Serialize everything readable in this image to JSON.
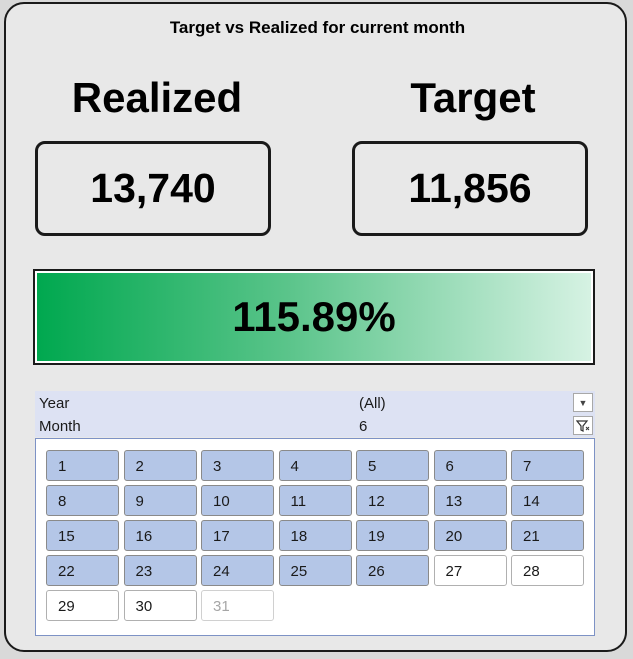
{
  "dashboard": {
    "title": "Target vs Realized for current month",
    "realized_label": "Realized",
    "target_label": "Target",
    "realized_value": "13,740",
    "target_value": "11,856",
    "achievement_text": "115.89%",
    "achievement_fraction": 1.0
  },
  "filters": {
    "year": {
      "label": "Year",
      "value": "(All)",
      "button_icon": "dropdown-arrow-icon"
    },
    "month": {
      "label": "Month",
      "value": "6",
      "button_icon": "filter-active-icon"
    }
  },
  "slicer": {
    "days": [
      {
        "label": "1",
        "state": "selected"
      },
      {
        "label": "2",
        "state": "selected"
      },
      {
        "label": "3",
        "state": "selected"
      },
      {
        "label": "4",
        "state": "selected"
      },
      {
        "label": "5",
        "state": "selected"
      },
      {
        "label": "6",
        "state": "selected"
      },
      {
        "label": "7",
        "state": "selected"
      },
      {
        "label": "8",
        "state": "selected"
      },
      {
        "label": "9",
        "state": "selected"
      },
      {
        "label": "10",
        "state": "selected"
      },
      {
        "label": "11",
        "state": "selected"
      },
      {
        "label": "12",
        "state": "selected"
      },
      {
        "label": "13",
        "state": "selected"
      },
      {
        "label": "14",
        "state": "selected"
      },
      {
        "label": "15",
        "state": "selected"
      },
      {
        "label": "16",
        "state": "selected"
      },
      {
        "label": "17",
        "state": "selected"
      },
      {
        "label": "18",
        "state": "selected"
      },
      {
        "label": "19",
        "state": "selected"
      },
      {
        "label": "20",
        "state": "selected"
      },
      {
        "label": "21",
        "state": "selected"
      },
      {
        "label": "22",
        "state": "selected"
      },
      {
        "label": "23",
        "state": "selected"
      },
      {
        "label": "24",
        "state": "selected"
      },
      {
        "label": "25",
        "state": "selected"
      },
      {
        "label": "26",
        "state": "selected"
      },
      {
        "label": "27",
        "state": "available"
      },
      {
        "label": "28",
        "state": "available"
      },
      {
        "label": "29",
        "state": "available"
      },
      {
        "label": "30",
        "state": "available"
      },
      {
        "label": "31",
        "state": "nodata"
      }
    ]
  },
  "colors": {
    "slicer_selected": "#b4c6e7",
    "progress_start": "#00a84f",
    "progress_end": "#d6f2e3",
    "filter_band": "#dde2f3"
  }
}
